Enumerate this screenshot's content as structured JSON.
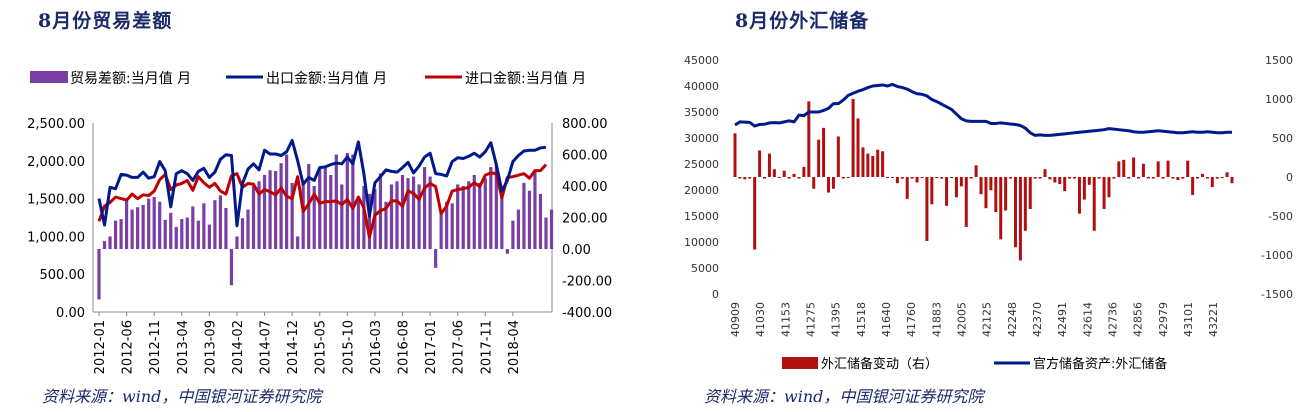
{
  "left_title": "8月份贸易差额",
  "right_title": "8月份外汇储备",
  "left_source": "资料来源：wind，中国银河证券研究院",
  "right_source": "资料来源：wind，中国银河证券研究院",
  "colors": {
    "title": "#1b2a6b",
    "purple": "#7a3fa5",
    "navy": "#001a8c",
    "red": "#c00000",
    "darkred": "#b01010"
  },
  "chart_data": [
    {
      "type": "bar+line",
      "legend": [
        "贸易差额:当月值 月",
        "出口金额:当月值 月",
        "进口金额:当月值 月"
      ],
      "left_axis": {
        "ticks": [
          "2,500.00",
          "2,000.00",
          "1,500.00",
          "1,000.00",
          "500.00",
          "0.00"
        ],
        "range": [
          0,
          2500
        ]
      },
      "right_axis": {
        "ticks": [
          "800.00",
          "600.00",
          "400.00",
          "200.00",
          "0.00",
          "-200.00",
          "-400.00"
        ],
        "range": [
          -400,
          800
        ]
      },
      "x_ticks": [
        "2012-01",
        "2012-06",
        "2012-11",
        "2013-04",
        "2013-09",
        "2014-02",
        "2014-07",
        "2014-12",
        "2015-05",
        "2015-10",
        "2016-03",
        "2016-08",
        "2017-01",
        "2017-06",
        "2017-11",
        "2018-04"
      ],
      "x_tick_positions": [
        0,
        5,
        10,
        15,
        20,
        25,
        30,
        35,
        40,
        45,
        50,
        55,
        60,
        65,
        70,
        75
      ],
      "series": [
        {
          "name": "贸易差额:当月值 月",
          "axis": "right",
          "kind": "bar",
          "values": [
            -320,
            50,
            80,
            180,
            190,
            310,
            250,
            265,
            280,
            320,
            330,
            300,
            185,
            230,
            140,
            190,
            200,
            270,
            180,
            290,
            155,
            310,
            340,
            260,
            -230,
            80,
            195,
            250,
            400,
            430,
            470,
            500,
            495,
            545,
            600,
            420,
            80,
            430,
            540,
            400,
            510,
            520,
            470,
            600,
            410,
            610,
            600,
            320,
            400,
            350,
            380,
            480,
            300,
            410,
            430,
            470,
            450,
            460,
            410,
            520,
            460,
            -120,
            230,
            300,
            290,
            410,
            400,
            430,
            470,
            420,
            450,
            520,
            530,
            340,
            -30,
            180,
            250,
            420,
            370,
            500,
            350,
            200,
            250
          ],
          "bar_heights": [
            -320,
            50,
            80,
            180,
            190,
            310,
            250,
            265,
            280,
            320,
            330,
            300,
            185,
            230,
            140,
            190,
            200,
            270,
            180,
            290,
            155,
            310,
            340,
            260,
            -230,
            80,
            195,
            250,
            400,
            430,
            470,
            500,
            495,
            545,
            600,
            420,
            80,
            430,
            540,
            400,
            510,
            520,
            470,
            600,
            410,
            610,
            600,
            320,
            400,
            350,
            380,
            480,
            300,
            410,
            430,
            470,
            450,
            460,
            410,
            520,
            460,
            -120,
            230,
            300,
            290,
            410,
            400,
            430,
            470,
            420,
            450,
            520,
            530,
            340,
            -30,
            180,
            250,
            420,
            370,
            500,
            350,
            200,
            250
          ]
        },
        {
          "name": "出口金额:当月值 月",
          "axis": "left",
          "kind": "line",
          "values": [
            1500,
            1150,
            1650,
            1630,
            1820,
            1810,
            1780,
            1780,
            1850,
            1770,
            1790,
            1990,
            1870,
            1390,
            1830,
            1870,
            1830,
            1740,
            1860,
            1900,
            1780,
            1850,
            2020,
            2080,
            2070,
            1140,
            1700,
            1890,
            1960,
            1880,
            2140,
            2090,
            2090,
            2070,
            2120,
            2270,
            2000,
            1690,
            1780,
            1740,
            1910,
            1920,
            1950,
            1970,
            1960,
            2050,
            1960,
            2250,
            1830,
            1270,
            1710,
            1790,
            1880,
            1860,
            1850,
            1910,
            1980,
            1840,
            1930,
            2050,
            2100,
            1830,
            1820,
            1800,
            1990,
            2040,
            2030,
            2060,
            2100,
            2050,
            2120,
            2240,
            1950,
            1600,
            1740,
            1990,
            2070,
            2130,
            2140,
            2140,
            2170,
            2180
          ],
          "x_offset": 0
        },
        {
          "name": "进口金额:当月值 月",
          "axis": "left",
          "kind": "line",
          "values": [
            1200,
            1400,
            1450,
            1520,
            1500,
            1480,
            1560,
            1500,
            1550,
            1540,
            1600,
            1750,
            1820,
            1620,
            1680,
            1700,
            1740,
            1610,
            1790,
            1710,
            1650,
            1700,
            1600,
            1560,
            1800,
            1830,
            1650,
            1700,
            1690,
            1560,
            1620,
            1590,
            1550,
            1640,
            1530,
            1500,
            1790,
            1330,
            1430,
            1560,
            1440,
            1460,
            1460,
            1470,
            1420,
            1490,
            1370,
            1520,
            1380,
            990,
            1280,
            1340,
            1370,
            1470,
            1470,
            1400,
            1600,
            1570,
            1490,
            1640,
            1700,
            1660,
            1300,
            1400,
            1600,
            1620,
            1630,
            1650,
            1710,
            1660,
            1810,
            1840,
            1830,
            1510,
            1780,
            1790,
            1810,
            1830,
            1770,
            1870,
            1870,
            1950
          ]
        }
      ]
    },
    {
      "type": "bar+line",
      "legend": [
        "外汇储备变动（右）",
        "官方储备资产:外汇储备"
      ],
      "left_axis": {
        "ticks": [
          "45000",
          "40000",
          "35000",
          "30000",
          "25000",
          "20000",
          "15000",
          "10000",
          "5000",
          "0"
        ],
        "range": [
          0,
          45000
        ]
      },
      "right_axis": {
        "ticks": [
          "1500",
          "1000",
          "500",
          "0",
          "-500",
          "-1000",
          "-1500"
        ],
        "range": [
          -1500,
          1500
        ]
      },
      "x_ticks": [
        "40909",
        "41030",
        "41153",
        "41275",
        "41395",
        "41518",
        "41640",
        "41760",
        "41883",
        "42005",
        "42125",
        "42248",
        "42370",
        "42491",
        "42614",
        "42736",
        "42856",
        "42979",
        "43101",
        "43221"
      ],
      "x_tick_positions": [
        0,
        4,
        8,
        12,
        16,
        20,
        24,
        28,
        32,
        36,
        40,
        44,
        48,
        52,
        56,
        60,
        64,
        68,
        72,
        76
      ],
      "series": [
        {
          "name": "外汇储备变动（右）",
          "axis": "right",
          "kind": "bar",
          "values": [
            560,
            -20,
            -30,
            -20,
            -930,
            340,
            -20,
            300,
            100,
            -10,
            80,
            -20,
            40,
            -20,
            130,
            970,
            -150,
            480,
            630,
            -200,
            -150,
            520,
            -20,
            -10,
            1000,
            750,
            380,
            300,
            270,
            350,
            330,
            0,
            0,
            -80,
            -20,
            -280,
            -20,
            -70,
            -10,
            -820,
            -350,
            -10,
            -20,
            -370,
            -10,
            -260,
            -120,
            -640,
            -20,
            150,
            -220,
            -400,
            -170,
            -450,
            -800,
            -430,
            -20,
            -900,
            -1070,
            -690,
            -410,
            -20,
            -20,
            100,
            -30,
            -70,
            -90,
            -180,
            -20,
            -20,
            -470,
            -290,
            -100,
            -690,
            -20,
            -410,
            -260,
            -20,
            200,
            220,
            -20,
            250,
            -20,
            170,
            -20,
            -20,
            200,
            -20,
            210,
            -20,
            -40,
            -20,
            210,
            -230,
            -20,
            40,
            -20,
            -130,
            -20,
            -10,
            60,
            -80
          ],
          "x_offset": 0
        },
        {
          "name": "官方储备资产:外汇储备",
          "axis": "left",
          "kind": "line",
          "values": [
            32500,
            33100,
            33050,
            33000,
            32300,
            32600,
            32650,
            32900,
            32950,
            32900,
            33100,
            33300,
            33100,
            34400,
            34300,
            35000,
            35000,
            35000,
            35300,
            35700,
            36600,
            36600,
            37300,
            38200,
            38600,
            39000,
            39300,
            39700,
            40000,
            40100,
            40200,
            40000,
            40300,
            39900,
            39700,
            39400,
            38900,
            38500,
            38400,
            38100,
            37400,
            37000,
            36500,
            36000,
            35500,
            34600,
            33700,
            33300,
            33200,
            33200,
            33200,
            33200,
            32800,
            32800,
            32900,
            32800,
            32700,
            32600,
            32400,
            31900,
            31000,
            30500,
            30600,
            30500,
            30500,
            30600,
            30700,
            30800,
            30900,
            31000,
            31100,
            31200,
            31300,
            31400,
            31500,
            31600,
            31800,
            31700,
            31600,
            31500,
            31400,
            31200,
            31100,
            31100,
            31200,
            31300,
            31400,
            31300,
            31200,
            31100,
            31000,
            31000,
            31100,
            31200,
            31100,
            31100,
            31200,
            31100,
            31000,
            31000,
            31100,
            31100
          ],
          "x_offset": 0
        }
      ]
    }
  ]
}
